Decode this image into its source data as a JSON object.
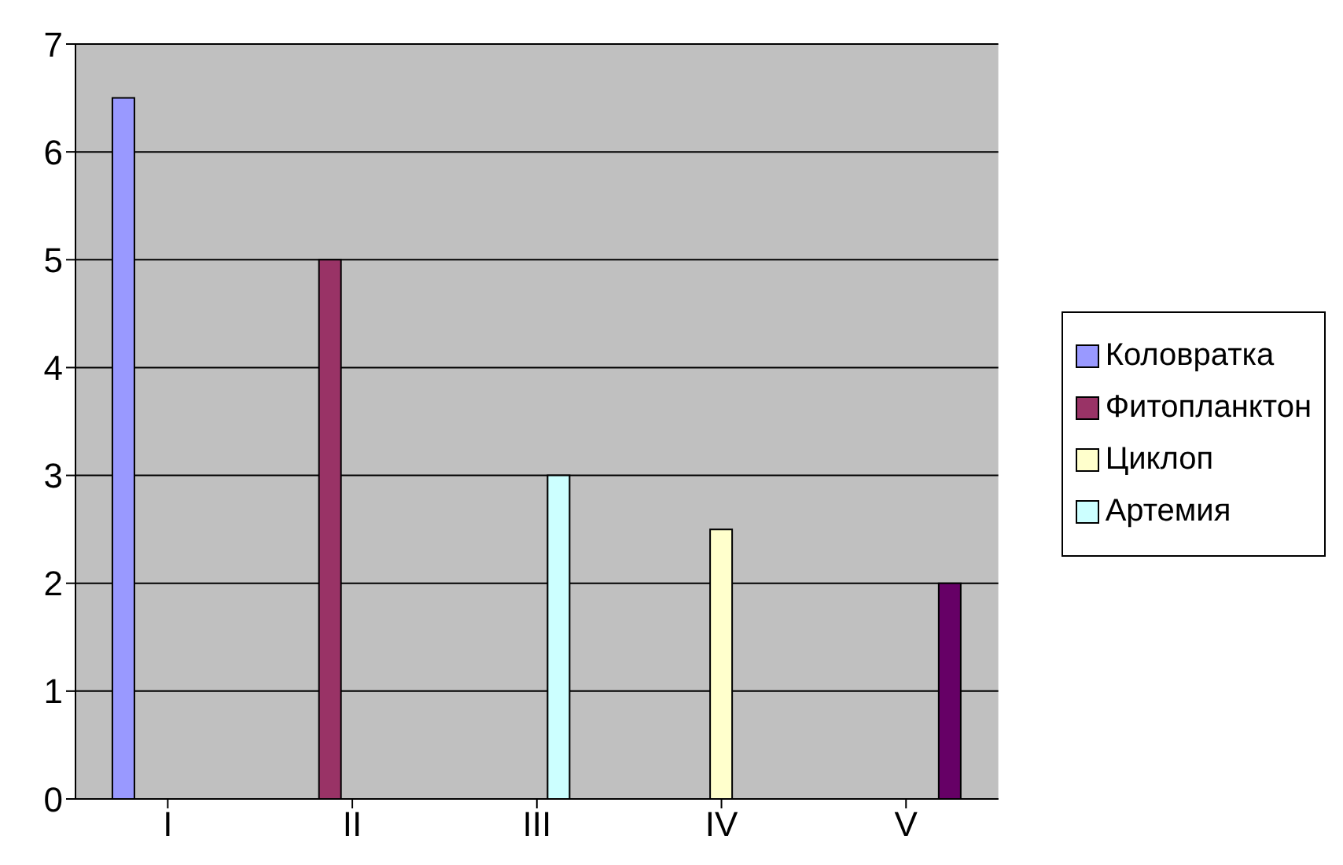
{
  "chart_data": {
    "type": "bar",
    "categories": [
      "I",
      "II",
      "III",
      "IV",
      "V"
    ],
    "series": [
      {
        "name": "Коловратка",
        "color": "#9999ff",
        "values": [
          6.5,
          null,
          null,
          null,
          null
        ]
      },
      {
        "name": "Фитопланктон",
        "color": "#993366",
        "values": [
          null,
          5,
          null,
          null,
          null
        ]
      },
      {
        "name": "Циклоп",
        "color": "#ffffcc",
        "values": [
          null,
          null,
          null,
          2.5,
          null
        ]
      },
      {
        "name": "Артемия",
        "color": "#ccffff",
        "values": [
          null,
          null,
          3,
          null,
          null
        ]
      },
      {
        "color": "#660066",
        "values": [
          null,
          null,
          null,
          null,
          2
        ]
      }
    ],
    "ylim": [
      0,
      7
    ],
    "yticks": [
      0,
      1,
      2,
      3,
      4,
      5,
      6,
      7
    ],
    "grid": "y",
    "legend": "right"
  }
}
